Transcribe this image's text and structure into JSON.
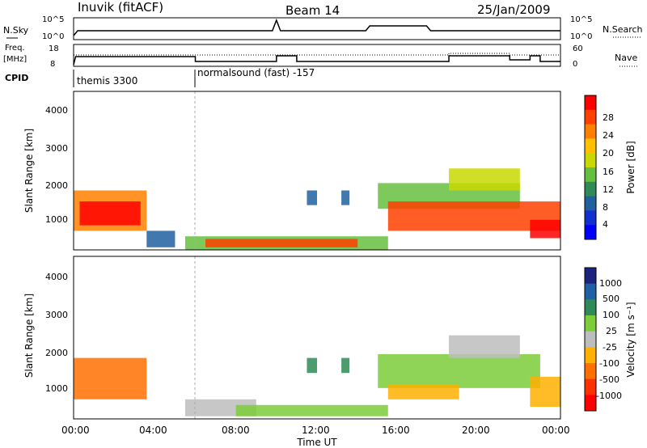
{
  "header": {
    "title": "Inuvik (fitACF)",
    "beam": "Beam 14",
    "date": "25/Jan/2009"
  },
  "summary_panels": {
    "nsky_label": "N.Sky",
    "nsearch_label": "N.Search",
    "nsky_ticks": [
      "10^5",
      "10^0"
    ],
    "freq_label": "Freq.",
    "freq_unit": "[MHz]",
    "freq_ticks": [
      "18",
      "8"
    ],
    "nave_label": "Nave",
    "nave_ticks": [
      "60",
      "0"
    ],
    "cpid_label": "CPID",
    "cpid_segments": [
      {
        "name": "themis 3300",
        "start": 0,
        "end": 6
      },
      {
        "name": "normalsound (fast) -157",
        "start": 6,
        "end": 24
      }
    ]
  },
  "power_panel": {
    "ylabel": "Slant Range [km]",
    "yticks": [
      "4000",
      "3000",
      "2000",
      "1000"
    ],
    "colorbar_label": "Power [dB]",
    "colorbar_ticks": [
      "28",
      "24",
      "20",
      "16",
      "12",
      "8",
      "4"
    ],
    "colorbar_colors": [
      "#ff0000",
      "#ff4000",
      "#ff8000",
      "#ffc000",
      "#c8d800",
      "#66c040",
      "#2e8b57",
      "#2060a0",
      "#1030d0",
      "#0000ff"
    ]
  },
  "velocity_panel": {
    "ylabel": "Slant Range [km]",
    "yticks": [
      "4000",
      "3000",
      "2000",
      "1000"
    ],
    "colorbar_label": "Velocity [m s⁻¹]",
    "colorbar_ticks": [
      "1000",
      "500",
      "100",
      "25",
      "-25",
      "-100",
      "-500",
      "-1000"
    ],
    "colorbar_colors": [
      "#1a237e",
      "#1f5fa8",
      "#2e8b57",
      "#7ccd3a",
      "#bdbdbd",
      "#ffb000",
      "#ff7000",
      "#ff3000",
      "#ff0000"
    ]
  },
  "xaxis": {
    "label": "Time UT",
    "ticks": [
      "00:00",
      "04:00",
      "08:00",
      "12:00",
      "16:00",
      "20:00",
      "00:00"
    ]
  },
  "chart_data": [
    {
      "type": "heatmap",
      "title": "Power",
      "xlabel": "Time UT",
      "ylabel": "Slant Range [km]",
      "xlim": [
        0,
        24
      ],
      "ylim": [
        180,
        4500
      ],
      "colorbar": {
        "label": "Power [dB]",
        "range": [
          0,
          30
        ]
      },
      "regions": [
        {
          "t": [
            0.0,
            3.6
          ],
          "r": [
            700,
            1800
          ],
          "value": 24
        },
        {
          "t": [
            0.3,
            3.3
          ],
          "r": [
            850,
            1500
          ],
          "value": 30
        },
        {
          "t": [
            3.6,
            5.0
          ],
          "r": [
            250,
            700
          ],
          "value": 8
        },
        {
          "t": [
            5.5,
            15.5
          ],
          "r": [
            180,
            550
          ],
          "value": 14
        },
        {
          "t": [
            6.5,
            14.0
          ],
          "r": [
            250,
            480
          ],
          "value": 26
        },
        {
          "t": [
            11.5,
            12.0
          ],
          "r": [
            1400,
            1800
          ],
          "value": 8
        },
        {
          "t": [
            13.2,
            13.6
          ],
          "r": [
            1400,
            1800
          ],
          "value": 8
        },
        {
          "t": [
            15.0,
            22.0
          ],
          "r": [
            1300,
            2000
          ],
          "value": 14
        },
        {
          "t": [
            15.5,
            24.0
          ],
          "r": [
            700,
            1500
          ],
          "value": 26
        },
        {
          "t": [
            22.5,
            24.0
          ],
          "r": [
            500,
            1000
          ],
          "value": 30
        },
        {
          "t": [
            18.5,
            22.0
          ],
          "r": [
            1800,
            2400
          ],
          "value": 18
        }
      ]
    },
    {
      "type": "heatmap",
      "title": "Velocity",
      "xlabel": "Time UT",
      "ylabel": "Slant Range [km]",
      "xlim": [
        0,
        24
      ],
      "ylim": [
        180,
        4500
      ],
      "colorbar": {
        "label": "Velocity [m s⁻¹]",
        "range": [
          -1000,
          1000
        ]
      },
      "regions": [
        {
          "t": [
            0.0,
            3.6
          ],
          "r": [
            700,
            1800
          ],
          "value": -500
        },
        {
          "t": [
            5.5,
            9.0
          ],
          "r": [
            250,
            700
          ],
          "value": -100
        },
        {
          "t": [
            8.0,
            15.5
          ],
          "r": [
            250,
            550
          ],
          "value": 150
        },
        {
          "t": [
            11.5,
            12.0
          ],
          "r": [
            1400,
            1800
          ],
          "value": 500
        },
        {
          "t": [
            13.2,
            13.6
          ],
          "r": [
            1400,
            1800
          ],
          "value": 500
        },
        {
          "t": [
            15.0,
            23.0
          ],
          "r": [
            1000,
            1900
          ],
          "value": 200
        },
        {
          "t": [
            15.5,
            19.0
          ],
          "r": [
            700,
            1100
          ],
          "value": -200
        },
        {
          "t": [
            22.5,
            24.0
          ],
          "r": [
            500,
            1300
          ],
          "value": -300
        },
        {
          "t": [
            18.5,
            22.0
          ],
          "r": [
            1800,
            2400
          ],
          "value": -100
        }
      ]
    }
  ]
}
